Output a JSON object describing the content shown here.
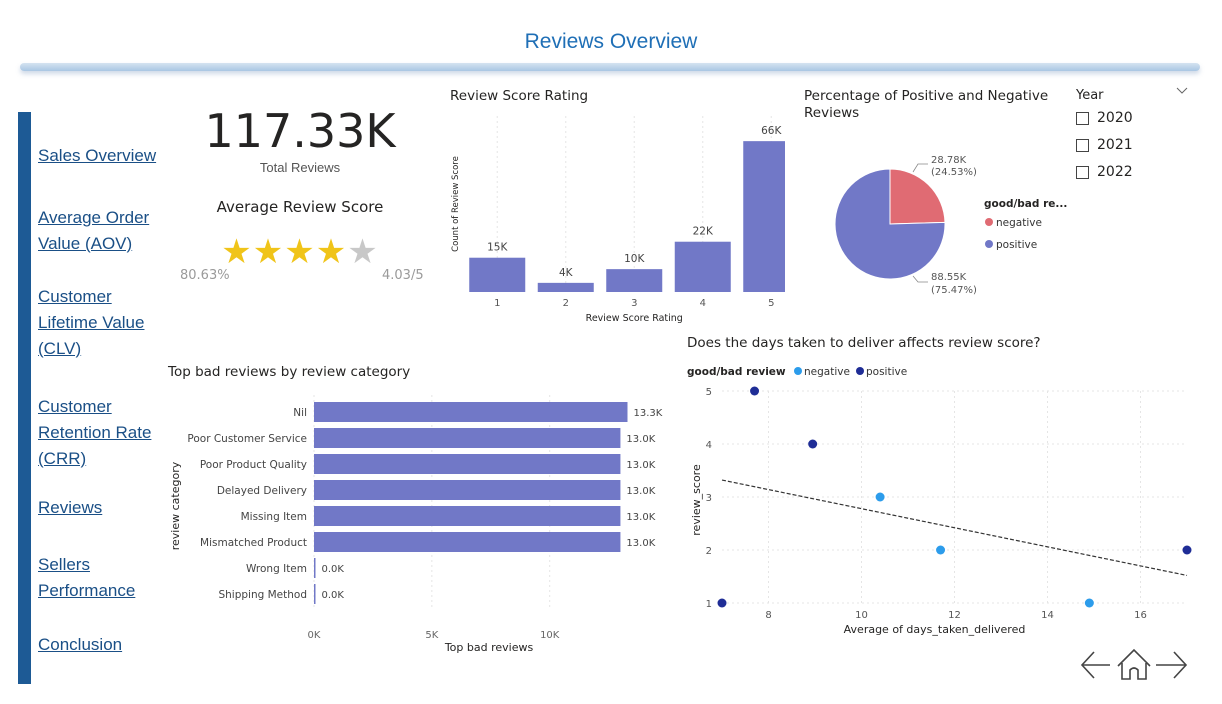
{
  "page": {
    "title": "Reviews Overview"
  },
  "nav": [
    {
      "label": "Sales Overview"
    },
    {
      "label": "Average Order Value (AOV)"
    },
    {
      "label": "Customer Lifetime Value (CLV)"
    },
    {
      "label": "Customer Retention Rate (CRR)"
    },
    {
      "label": "Reviews"
    },
    {
      "label": "Sellers Performance"
    },
    {
      "label": "Conclusion"
    }
  ],
  "kpi": {
    "total_value": "117.33K",
    "total_label": "Total Reviews",
    "avg_title": "Average Review Score",
    "avg_percent": "80.63%",
    "avg_score": "4.03/5",
    "stars_filled": 4,
    "stars_total": 5
  },
  "slicer": {
    "title": "Year",
    "options": [
      "2020",
      "2021",
      "2022"
    ],
    "chevron_icon": "chevron-down-icon"
  },
  "colors": {
    "accent": "#1f6fb6",
    "nav_stripe": "#1d5a95",
    "bar": "#7178c7",
    "negative": "#e06b73",
    "positive": "#7178c7",
    "scatter_negative": "#2c9ceb",
    "scatter_positive": "#1f2d96",
    "star": "#f0c419"
  },
  "icons": {
    "prev": "arrow-left-icon",
    "home": "home-icon",
    "next": "arrow-right-icon"
  },
  "chart_data": [
    {
      "id": "review-score-rating",
      "type": "bar",
      "title": "Review Score Rating",
      "xlabel": "Review Score Rating",
      "ylabel": "Count of Review Score",
      "categories": [
        "1",
        "2",
        "3",
        "4",
        "5"
      ],
      "values": [
        15000,
        4000,
        10000,
        22000,
        66000
      ],
      "data_labels": [
        "15K",
        "4K",
        "10K",
        "22K",
        "66K"
      ],
      "grid": true
    },
    {
      "id": "positive-negative-pie",
      "type": "pie",
      "title": "Percentage of Positive and Negative Reviews",
      "legend_title": "good/bad re...",
      "legend_position": "right",
      "slices": [
        {
          "name": "negative",
          "value": 28780,
          "label": "28.78K",
          "pct": "(24.53%)"
        },
        {
          "name": "positive",
          "value": 88550,
          "label": "88.55K",
          "pct": "(75.47%)"
        }
      ]
    },
    {
      "id": "top-bad-reviews",
      "type": "bar",
      "orientation": "horizontal",
      "title": "Top bad reviews by review category",
      "xlabel": "Top bad reviews",
      "ylabel": "review category",
      "categories": [
        "Nil",
        "Poor Customer Service",
        "Poor Product Quality",
        "Delayed Delivery",
        "Missing Item",
        "Mismatched Product",
        "Wrong Item",
        "Shipping Method"
      ],
      "values": [
        13300,
        13000,
        13000,
        13000,
        13000,
        13000,
        0,
        0
      ],
      "data_labels": [
        "13.3K",
        "13.0K",
        "13.0K",
        "13.0K",
        "13.0K",
        "13.0K",
        "0.0K",
        "0.0K"
      ],
      "xticks": [
        "0K",
        "5K",
        "10K"
      ],
      "xlim": [
        0,
        14000
      ],
      "grid": true
    },
    {
      "id": "days-vs-score",
      "type": "scatter",
      "title": "Does the days taken to deliver affects review score?",
      "legend_title": "good/bad review",
      "legend_position": "top-left",
      "xlabel": "Average of days_taken_delivered",
      "ylabel": "review_score",
      "xlim": [
        7,
        17
      ],
      "ylim": [
        1,
        5
      ],
      "xticks": [
        8,
        10,
        12,
        14,
        16
      ],
      "yticks": [
        1,
        2,
        3,
        4,
        5
      ],
      "series": [
        {
          "name": "negative",
          "points": [
            [
              10.4,
              3
            ],
            [
              11.7,
              2
            ],
            [
              14.9,
              1
            ]
          ]
        },
        {
          "name": "positive",
          "points": [
            [
              7.7,
              5
            ],
            [
              8.95,
              4
            ],
            [
              17,
              2
            ],
            [
              7,
              1
            ]
          ]
        }
      ],
      "trendline": [
        [
          7,
          3.32
        ],
        [
          17,
          1.52
        ]
      ],
      "grid": true
    }
  ]
}
